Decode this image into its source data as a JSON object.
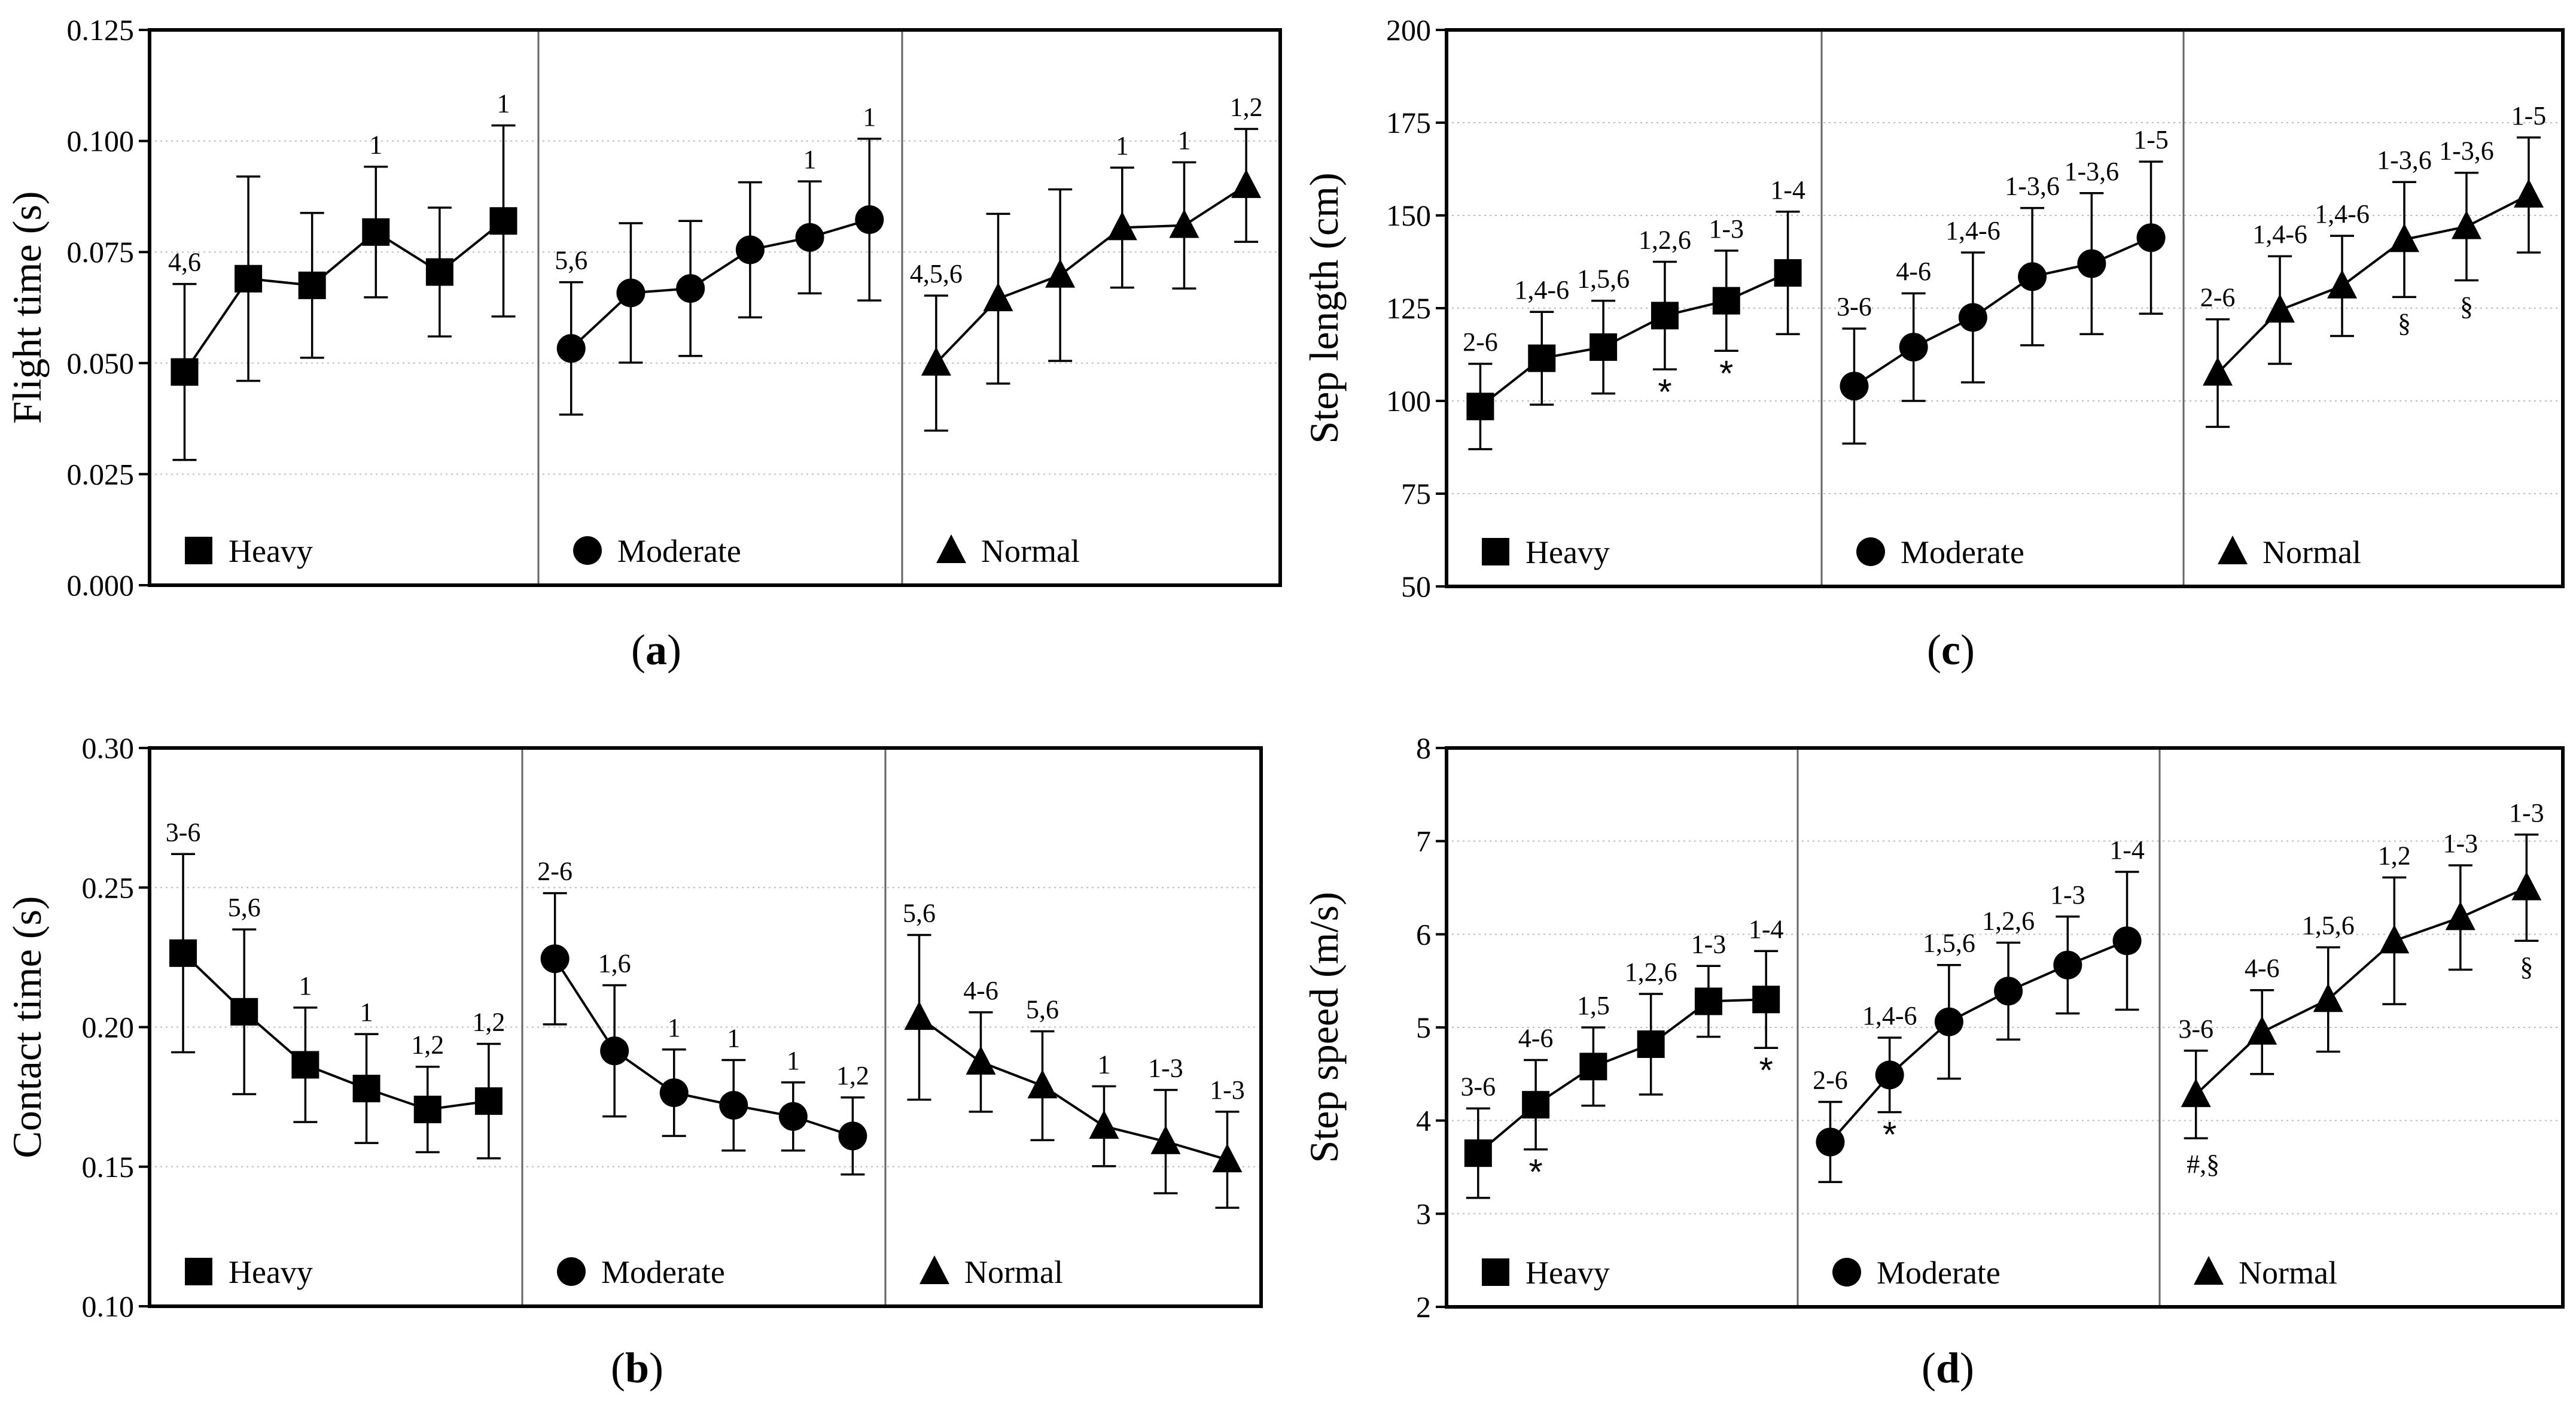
{
  "chart_data": [
    {
      "id": "a",
      "type": "line",
      "caption_letter": "a",
      "ylabel": "Flight time (s)",
      "xlabel": "",
      "ylim": [
        0.0,
        0.125
      ],
      "y_ticks": [
        "0.000",
        "0.025",
        "0.050",
        "0.075",
        "0.100",
        "0.125"
      ],
      "grid": true,
      "groups": [
        {
          "name": "Heavy",
          "marker": "square",
          "values": [
            0.048,
            0.069,
            0.0675,
            0.0795,
            0.0705,
            0.082
          ],
          "err": [
            0.0198,
            0.023,
            0.0163,
            0.0147,
            0.0145,
            0.0215
          ],
          "labels": [
            "4,6",
            "",
            "",
            "1",
            "",
            "1"
          ],
          "symbols": [
            "",
            "",
            "",
            "",
            "",
            ""
          ]
        },
        {
          "name": "Moderate",
          "marker": "circle",
          "values": [
            0.0533,
            0.0658,
            0.0668,
            0.0755,
            0.0783,
            0.0823
          ],
          "err": [
            0.0149,
            0.0157,
            0.0152,
            0.0152,
            0.0126,
            0.0182
          ],
          "labels": [
            "5,6",
            "",
            "",
            "",
            "1",
            "1"
          ],
          "symbols": [
            "",
            "",
            "",
            "",
            "",
            ""
          ]
        },
        {
          "name": "Normal",
          "marker": "triangle",
          "values": [
            0.05,
            0.0645,
            0.0698,
            0.0805,
            0.081,
            0.09
          ],
          "err": [
            0.0152,
            0.0191,
            0.0193,
            0.0135,
            0.0142,
            0.0127
          ],
          "labels": [
            "4,5,6",
            "",
            "",
            "1",
            "1",
            "1,2"
          ],
          "symbols": [
            "",
            "",
            "",
            "",
            "",
            ""
          ]
        }
      ]
    },
    {
      "id": "b",
      "type": "line",
      "caption_letter": "b",
      "ylabel": "Contact time (s)",
      "xlabel": "",
      "ylim": [
        0.1,
        0.3
      ],
      "y_ticks": [
        "0.10",
        "0.15",
        "0.20",
        "0.25",
        "0.30"
      ],
      "grid": true,
      "groups": [
        {
          "name": "Heavy",
          "marker": "square",
          "values": [
            0.2265,
            0.2055,
            0.1865,
            0.178,
            0.1705,
            0.1735
          ],
          "err": [
            0.0355,
            0.0295,
            0.0205,
            0.0195,
            0.0153,
            0.0205
          ],
          "labels": [
            "3-6",
            "5,6",
            "1",
            "1",
            "1,2",
            "1,2"
          ],
          "symbols": [
            "",
            "",
            "",
            "",
            "",
            ""
          ]
        },
        {
          "name": "Moderate",
          "marker": "circle",
          "values": [
            0.2245,
            0.1915,
            0.1765,
            0.172,
            0.168,
            0.161
          ],
          "err": [
            0.0235,
            0.0235,
            0.0155,
            0.0162,
            0.0122,
            0.0138
          ],
          "labels": [
            "2-6",
            "1,6",
            "1",
            "1",
            "1",
            "1,2"
          ],
          "symbols": [
            "",
            "",
            "",
            "",
            "",
            ""
          ]
        },
        {
          "name": "Normal",
          "marker": "triangle",
          "values": [
            0.2035,
            0.1875,
            0.179,
            0.1645,
            0.159,
            0.1525
          ],
          "err": [
            0.0295,
            0.0178,
            0.0195,
            0.0143,
            0.0185,
            0.0172
          ],
          "labels": [
            "5,6",
            "4-6",
            "5,6",
            "1",
            "1-3",
            "1-3"
          ],
          "symbols": [
            "",
            "",
            "",
            "",
            "",
            ""
          ]
        }
      ]
    },
    {
      "id": "c",
      "type": "line",
      "caption_letter": "c",
      "ylabel": "Step length (cm)",
      "xlabel": "",
      "ylim": [
        50,
        200
      ],
      "y_ticks": [
        "50",
        "75",
        "100",
        "125",
        "150",
        "175",
        "200"
      ],
      "grid": true,
      "groups": [
        {
          "name": "Heavy",
          "marker": "square",
          "values": [
            98.5,
            111.5,
            114.5,
            123,
            127,
            134.5
          ],
          "err": [
            11.5,
            12.5,
            12.5,
            14.5,
            13.5,
            16.5
          ],
          "labels": [
            "2-6",
            "1,4-6",
            "1,5,6",
            "1,2,6",
            "1-3",
            "1-4"
          ],
          "symbols": [
            "",
            "",
            "",
            "*",
            "*",
            ""
          ]
        },
        {
          "name": "Moderate",
          "marker": "circle",
          "values": [
            104,
            114.5,
            122.5,
            133.5,
            137,
            144
          ],
          "err": [
            15.5,
            14.5,
            17.5,
            18.5,
            19,
            20.5
          ],
          "labels": [
            "3-6",
            "4-6",
            "1,4-6",
            "1-3,6",
            "1-3,6",
            "1-5"
          ],
          "symbols": [
            "",
            "",
            "",
            "",
            "",
            ""
          ]
        },
        {
          "name": "Normal",
          "marker": "triangle",
          "values": [
            107.5,
            124.5,
            131,
            143.5,
            147,
            155.5
          ],
          "err": [
            14.5,
            14.5,
            13.5,
            15.5,
            14.5,
            15.5
          ],
          "labels": [
            "2-6",
            "1,4-6",
            "1,4-6",
            "1-3,6",
            "1-3,6",
            "1-5"
          ],
          "symbols": [
            "",
            "",
            "",
            "§",
            "§",
            ""
          ]
        }
      ]
    },
    {
      "id": "d",
      "type": "line",
      "caption_letter": "d",
      "ylabel": "Step speed (m/s)",
      "xlabel": "",
      "ylim": [
        2,
        8
      ],
      "y_ticks": [
        "2",
        "3",
        "4",
        "5",
        "6",
        "7",
        "8"
      ],
      "grid": true,
      "groups": [
        {
          "name": "Heavy",
          "marker": "square",
          "values": [
            3.65,
            4.17,
            4.58,
            4.82,
            5.28,
            5.3
          ],
          "err": [
            0.48,
            0.48,
            0.42,
            0.54,
            0.38,
            0.52
          ],
          "labels": [
            "3-6",
            "4-6",
            "1,5",
            "1,2,6",
            "1-3",
            "1-4"
          ],
          "symbols": [
            "",
            "*",
            "",
            "",
            "",
            "*"
          ]
        },
        {
          "name": "Moderate",
          "marker": "circle",
          "values": [
            3.77,
            4.49,
            5.06,
            5.39,
            5.67,
            5.93
          ],
          "err": [
            0.43,
            0.4,
            0.61,
            0.52,
            0.52,
            0.74
          ],
          "labels": [
            "2-6",
            "1,4-6",
            "1,5,6",
            "1,2,6",
            "1-3",
            "1-4"
          ],
          "symbols": [
            "",
            "*",
            "",
            "",
            "",
            ""
          ]
        },
        {
          "name": "Normal",
          "marker": "triangle",
          "values": [
            4.28,
            4.95,
            5.3,
            5.93,
            6.18,
            6.5
          ],
          "err": [
            0.47,
            0.45,
            0.56,
            0.68,
            0.56,
            0.57
          ],
          "labels": [
            "3-6",
            "4-6",
            "1,5,6",
            "1,2",
            "1-3",
            "1-3"
          ],
          "symbols": [
            "#,§",
            "",
            "",
            "",
            "",
            "§"
          ]
        }
      ]
    }
  ]
}
